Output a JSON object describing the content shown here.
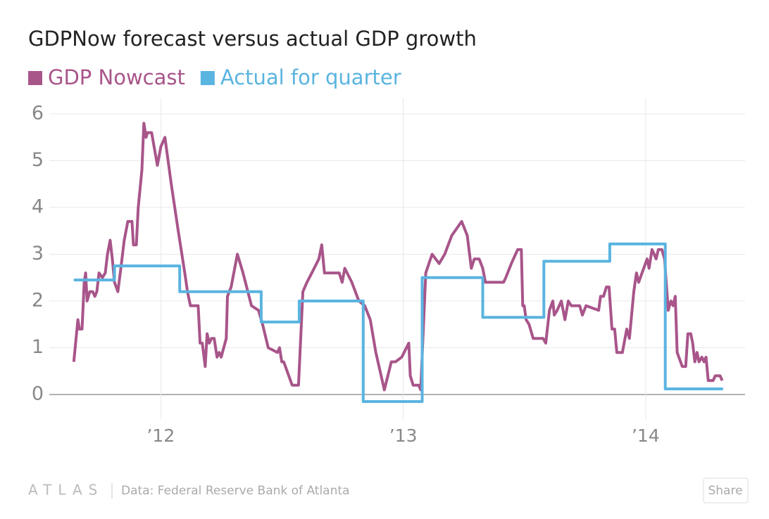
{
  "chart_data": {
    "type": "line",
    "title": "GDPNow forecast versus actual GDP growth",
    "brand": "ATLAS",
    "source": "Data:  Federal Reserve Bank of Atlanta",
    "share": "Share",
    "xlim": [
      2011.54,
      2014.41
    ],
    "xticks": [
      {
        "value": 2012,
        "label": "’12"
      },
      {
        "value": 2013,
        "label": "’13"
      },
      {
        "value": 2014,
        "label": "’14"
      }
    ],
    "ylim": [
      -0.4,
      6.2
    ],
    "yticks": [
      0,
      1,
      2,
      3,
      4,
      5,
      6
    ],
    "grid": true,
    "series": [
      {
        "name": "GDP Nowcast",
        "color": "#a8558a",
        "x": [
          2011.641,
          2011.658,
          2011.664,
          2011.675,
          2011.684,
          2011.69,
          2011.696,
          2011.707,
          2011.719,
          2011.728,
          2011.736,
          2011.745,
          2011.759,
          2011.771,
          2011.78,
          2011.791,
          2011.8,
          2011.809,
          2011.823,
          2011.835,
          2011.849,
          2011.864,
          2011.881,
          2011.887,
          2011.899,
          2011.907,
          2011.922,
          2011.93,
          2011.939,
          2011.945,
          2011.962,
          2011.986,
          2012.0,
          2012.017,
          2012.043,
          2012.072,
          2012.099,
          2012.11,
          2012.122,
          2012.154,
          2012.162,
          2012.171,
          2012.183,
          2012.191,
          2012.2,
          2012.209,
          2012.22,
          2012.232,
          2012.241,
          2012.249,
          2012.27,
          2012.275,
          2012.29,
          2012.316,
          2012.339,
          2012.374,
          2012.403,
          2012.42,
          2012.443,
          2012.481,
          2012.49,
          2012.499,
          2012.507,
          2012.528,
          2012.542,
          2012.568,
          2012.586,
          2012.603,
          2012.623,
          2012.652,
          2012.664,
          2012.675,
          2012.736,
          2012.748,
          2012.759,
          2012.788,
          2012.817,
          2012.841,
          2012.864,
          2012.887,
          2012.922,
          2012.951,
          2012.968,
          2012.994,
          2013.023,
          2013.029,
          2013.041,
          2013.064,
          2013.072,
          2013.093,
          2013.119,
          2013.148,
          2013.171,
          2013.2,
          2013.241,
          2013.264,
          2013.281,
          2013.293,
          2013.313,
          2013.328,
          2013.339,
          2013.414,
          2013.423,
          2013.446,
          2013.472,
          2013.487,
          2013.493,
          2013.499,
          2013.507,
          2013.519,
          2013.536,
          2013.577,
          2013.588,
          2013.603,
          2013.617,
          2013.623,
          2013.635,
          2013.652,
          2013.667,
          2013.681,
          2013.693,
          2013.71,
          2013.728,
          2013.739,
          2013.754,
          2013.806,
          2013.814,
          2013.826,
          2013.838,
          2013.849,
          2013.861,
          2013.872,
          2013.881,
          2013.904,
          2013.922,
          2013.933,
          2013.951,
          2013.962,
          2013.971,
          2014.006,
          2014.014,
          2014.026,
          2014.035,
          2014.043,
          2014.052,
          2014.067,
          2014.078,
          2014.093,
          2014.104,
          2014.113,
          2014.122,
          2014.13,
          2014.151,
          2014.165,
          2014.174,
          2014.186,
          2014.194,
          2014.203,
          2014.212,
          2014.22,
          2014.232,
          2014.241,
          2014.249,
          2014.258,
          2014.278,
          2014.287,
          2014.307,
          2014.316
        ],
        "values": [
          0.7,
          1.6,
          1.4,
          1.4,
          2.4,
          2.6,
          2.0,
          2.2,
          2.2,
          2.1,
          2.2,
          2.6,
          2.5,
          2.6,
          3.0,
          3.3,
          2.9,
          2.4,
          2.2,
          2.7,
          3.3,
          3.7,
          3.7,
          3.2,
          3.2,
          4.0,
          4.8,
          5.8,
          5.5,
          5.6,
          5.6,
          4.9,
          5.3,
          5.5,
          4.5,
          3.5,
          2.6,
          2.2,
          1.9,
          1.9,
          1.1,
          1.1,
          0.6,
          1.3,
          1.1,
          1.2,
          1.2,
          0.8,
          0.9,
          0.8,
          1.2,
          2.1,
          2.3,
          3.0,
          2.6,
          1.9,
          1.8,
          1.5,
          1.0,
          0.9,
          1.0,
          0.7,
          0.7,
          0.4,
          0.2,
          0.2,
          2.2,
          2.4,
          2.6,
          2.9,
          3.2,
          2.6,
          2.6,
          2.4,
          2.7,
          2.4,
          2.0,
          1.9,
          1.6,
          0.9,
          0.1,
          0.7,
          0.7,
          0.8,
          1.1,
          0.4,
          0.2,
          0.2,
          0.1,
          2.6,
          3.0,
          2.8,
          3.0,
          3.4,
          3.7,
          3.4,
          2.7,
          2.9,
          2.9,
          2.7,
          2.4,
          2.4,
          2.5,
          2.8,
          3.1,
          3.1,
          1.9,
          1.9,
          1.6,
          1.5,
          1.2,
          1.2,
          1.1,
          1.8,
          2.0,
          1.7,
          1.8,
          2.0,
          1.6,
          2.0,
          1.9,
          1.9,
          1.9,
          1.7,
          1.9,
          1.8,
          2.1,
          2.1,
          2.3,
          2.3,
          1.4,
          1.4,
          0.9,
          0.9,
          1.4,
          1.2,
          2.2,
          2.6,
          2.4,
          2.9,
          2.7,
          3.1,
          3.0,
          2.9,
          3.1,
          3.1,
          2.9,
          1.8,
          2.0,
          1.9,
          2.1,
          0.9,
          0.6,
          0.6,
          1.3,
          1.3,
          1.1,
          0.7,
          0.9,
          0.7,
          0.8,
          0.7,
          0.8,
          0.3,
          0.3,
          0.4,
          0.4,
          0.3
        ]
      },
      {
        "name": "Actual for quarter",
        "color": "#5ab4e0",
        "x": [
          2011.641,
          2011.809,
          2011.809,
          2012.078,
          2012.078,
          2012.414,
          2012.414,
          2012.571,
          2012.571,
          2012.835,
          2012.835,
          2013.078,
          2013.078,
          2013.328,
          2013.328,
          2013.58,
          2013.58,
          2013.852,
          2013.852,
          2014.081,
          2014.081,
          2014.319
        ],
        "values": [
          2.45,
          2.45,
          2.75,
          2.75,
          2.2,
          2.2,
          1.55,
          1.55,
          2.0,
          2.0,
          -0.15,
          -0.15,
          2.5,
          2.5,
          1.65,
          1.65,
          2.85,
          2.85,
          3.22,
          3.22,
          0.12,
          0.12
        ]
      }
    ]
  }
}
